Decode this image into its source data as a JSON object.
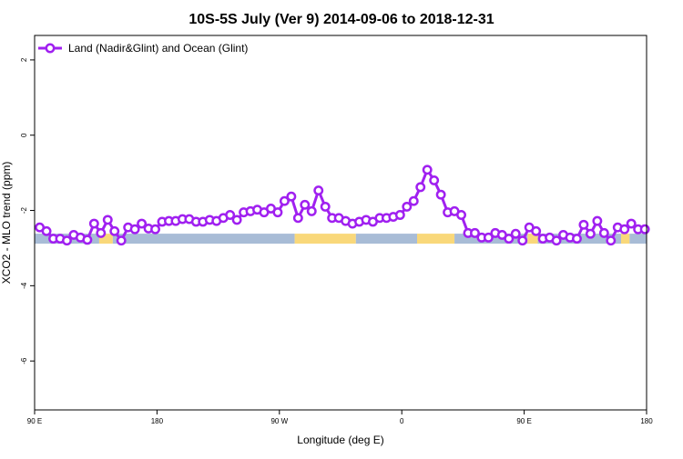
{
  "chart_data": {
    "type": "line",
    "title": "10S-5S July (Ver 9)   2014-09-06 to 2018-12-31",
    "xlabel": "Longitude (deg E)",
    "ylabel": "XCO2 - MLO trend (ppm)",
    "xlim": [
      -90,
      270
    ],
    "ylim": [
      -7.3,
      2.65
    ],
    "x_ticks": [
      {
        "value": -90,
        "label": "90 E"
      },
      {
        "value": -18,
        "label": "180"
      },
      {
        "value": 54,
        "label": "90 W"
      },
      {
        "value": 126,
        "label": "0"
      },
      {
        "value": 198,
        "label": "90 E"
      },
      {
        "value": 270,
        "label": "180"
      }
    ],
    "y_ticks": [
      {
        "value": 2,
        "label": "2"
      },
      {
        "value": 0,
        "label": "0"
      },
      {
        "value": -2,
        "label": "-2"
      },
      {
        "value": -4,
        "label": "-4"
      },
      {
        "value": -6,
        "label": "-6"
      }
    ],
    "grid": false,
    "legend_position": "top-left",
    "series": [
      {
        "name": "Land (Nadir&Glint) and Ocean (Glint)",
        "color": "#a020f0",
        "marker": "open-circle",
        "x": [
          -87,
          -83,
          -79,
          -75,
          -71,
          -67,
          -63,
          -59,
          -55,
          -51,
          -47,
          -43,
          -39,
          -35,
          -31,
          -27,
          -23,
          -19,
          -15,
          -11,
          -7,
          -3,
          1,
          5,
          9,
          13,
          17,
          21,
          25,
          29,
          33,
          37,
          41,
          45,
          49,
          53,
          57,
          61,
          65,
          69,
          73,
          77,
          81,
          85,
          89,
          93,
          97,
          101,
          105,
          109,
          113,
          117,
          121,
          125,
          129,
          133,
          137,
          141,
          145,
          149,
          153,
          157,
          161,
          165,
          169,
          173,
          177,
          181,
          185,
          189,
          193,
          197,
          201,
          205,
          209,
          213,
          217,
          221,
          225,
          229,
          233,
          237,
          241,
          245,
          249,
          253,
          257,
          261,
          265,
          269
        ],
        "y": [
          -2.45,
          -2.55,
          -2.75,
          -2.75,
          -2.8,
          -2.65,
          -2.72,
          -2.78,
          -2.35,
          -2.6,
          -2.25,
          -2.55,
          -2.8,
          -2.45,
          -2.5,
          -2.35,
          -2.48,
          -2.5,
          -2.3,
          -2.28,
          -2.28,
          -2.23,
          -2.23,
          -2.3,
          -2.3,
          -2.25,
          -2.28,
          -2.2,
          -2.12,
          -2.25,
          -2.05,
          -2.02,
          -1.98,
          -2.05,
          -1.95,
          -2.05,
          -1.75,
          -1.63,
          -2.2,
          -1.85,
          -2.02,
          -1.47,
          -1.9,
          -2.2,
          -2.2,
          -2.28,
          -2.35,
          -2.3,
          -2.25,
          -2.3,
          -2.2,
          -2.2,
          -2.17,
          -2.12,
          -1.9,
          -1.75,
          -1.38,
          -0.92,
          -1.2,
          -1.58,
          -2.05,
          -2.02,
          -2.12,
          -2.6,
          -2.6,
          -2.72,
          -2.72,
          -2.6,
          -2.65,
          -2.75,
          -2.62,
          -2.8,
          -2.45,
          -2.55,
          -2.75,
          -2.72,
          -2.8,
          -2.65,
          -2.72,
          -2.75,
          -2.38,
          -2.62,
          -2.28,
          -2.6,
          -2.8,
          -2.45,
          -2.5,
          -2.35,
          -2.5,
          -2.5
        ]
      }
    ],
    "surface_band": {
      "y": -2.75,
      "ocean_color": "#a8bcd6",
      "land_color": "#f9d87a",
      "segments": [
        {
          "from": -90,
          "to": -52,
          "type": "ocean"
        },
        {
          "from": -52,
          "to": -44,
          "type": "land"
        },
        {
          "from": -44,
          "to": 63,
          "type": "ocean"
        },
        {
          "from": 63,
          "to": 99,
          "type": "land"
        },
        {
          "from": 99,
          "to": 135,
          "type": "ocean"
        },
        {
          "from": 135,
          "to": 157,
          "type": "land"
        },
        {
          "from": 157,
          "to": 200,
          "type": "ocean"
        },
        {
          "from": 200,
          "to": 206,
          "type": "land"
        },
        {
          "from": 206,
          "to": 255,
          "type": "ocean"
        },
        {
          "from": 255,
          "to": 260,
          "type": "land"
        },
        {
          "from": 260,
          "to": 270,
          "type": "ocean"
        }
      ]
    }
  }
}
